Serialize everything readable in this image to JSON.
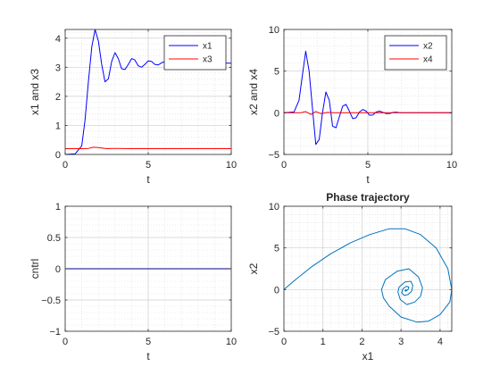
{
  "chart_data": [
    {
      "type": "line",
      "title": "",
      "xlabel": "t",
      "ylabel": "x1 and x3",
      "xlim": [
        0,
        10
      ],
      "ylim": [
        0,
        4.3
      ],
      "xticks": [
        0,
        5,
        10
      ],
      "yticks": [
        0,
        1,
        2,
        3,
        4
      ],
      "grid": true,
      "minor_grid": true,
      "legend": "top-right",
      "series": [
        {
          "name": "x1",
          "color": "#0000ff",
          "x": [
            0,
            0.6,
            1.0,
            1.2,
            1.4,
            1.6,
            1.8,
            2.0,
            2.2,
            2.4,
            2.6,
            2.8,
            3.0,
            3.2,
            3.4,
            3.6,
            3.8,
            4.0,
            4.2,
            4.4,
            4.6,
            4.8,
            5.0,
            5.2,
            5.4,
            5.6,
            5.8,
            6.0,
            6.2,
            6.4,
            6.6,
            6.8,
            7.0,
            7.5,
            8.0,
            8.5,
            9.0,
            10.0
          ],
          "y": [
            0,
            0.02,
            0.3,
            1.2,
            2.5,
            3.7,
            4.3,
            3.9,
            3.1,
            2.5,
            2.6,
            3.2,
            3.5,
            3.3,
            2.95,
            2.92,
            3.1,
            3.3,
            3.25,
            3.05,
            3.0,
            3.1,
            3.22,
            3.2,
            3.1,
            3.08,
            3.15,
            3.19,
            3.15,
            3.11,
            3.12,
            3.16,
            3.16,
            3.13,
            3.15,
            3.14,
            3.14,
            3.14
          ]
        },
        {
          "name": "x3",
          "color": "#ff0000",
          "x": [
            0,
            1.0,
            1.4,
            1.7,
            2.0,
            2.5,
            3.0,
            4.0,
            6.0,
            8.0,
            10.0
          ],
          "y": [
            0.2,
            0.2,
            0.21,
            0.25,
            0.24,
            0.2,
            0.21,
            0.2,
            0.2,
            0.2,
            0.2
          ]
        }
      ]
    },
    {
      "type": "line",
      "title": "",
      "xlabel": "t",
      "ylabel": "x2 and x4",
      "xlim": [
        0,
        10
      ],
      "ylim": [
        -5,
        10
      ],
      "xticks": [
        0,
        5,
        10
      ],
      "yticks": [
        -5,
        0,
        5,
        10
      ],
      "grid": true,
      "minor_grid": true,
      "legend": "top-right",
      "series": [
        {
          "name": "x2",
          "color": "#0000ff",
          "x": [
            0,
            0.6,
            0.9,
            1.1,
            1.3,
            1.5,
            1.7,
            1.9,
            2.1,
            2.3,
            2.5,
            2.7,
            2.9,
            3.1,
            3.3,
            3.5,
            3.7,
            3.9,
            4.1,
            4.3,
            4.5,
            4.7,
            4.9,
            5.1,
            5.3,
            5.5,
            5.7,
            5.9,
            6.1,
            6.3,
            6.5,
            6.7,
            6.9,
            7.5,
            8.0,
            9.0,
            10.0
          ],
          "y": [
            0,
            0.1,
            1.5,
            4.5,
            7.4,
            5.0,
            0.5,
            -3.8,
            -3.2,
            0.0,
            2.5,
            1.5,
            -1.6,
            -1.8,
            -0.5,
            0.8,
            1.0,
            0.2,
            -0.7,
            -0.6,
            0.1,
            0.4,
            0.2,
            -0.3,
            -0.25,
            0.1,
            0.2,
            0.05,
            -0.1,
            -0.08,
            0.05,
            0.08,
            0.0,
            0.0,
            0.0,
            0.0,
            0.0
          ]
        },
        {
          "name": "x4",
          "color": "#ff0000",
          "x": [
            0,
            1.0,
            1.3,
            1.6,
            1.9,
            2.2,
            2.6,
            3.0,
            4.0,
            10.0
          ],
          "y": [
            0,
            0.0,
            0.15,
            -0.2,
            0.15,
            -0.1,
            0.05,
            0.0,
            0.0,
            0.0
          ]
        }
      ]
    },
    {
      "type": "line",
      "title": "",
      "xlabel": "t",
      "ylabel": "cntrl",
      "xlim": [
        0,
        10
      ],
      "ylim": [
        -1,
        1
      ],
      "xticks": [
        0,
        5,
        10
      ],
      "yticks": [
        -1,
        -0.5,
        0,
        0.5,
        1
      ],
      "grid": true,
      "minor_grid": true,
      "series": [
        {
          "color": "#00008b",
          "x": [
            0,
            10
          ],
          "y": [
            0,
            0
          ]
        }
      ]
    },
    {
      "type": "line",
      "title": "Phase trajectory",
      "xlabel": "x1",
      "ylabel": "x2",
      "xlim": [
        0,
        4.3
      ],
      "ylim": [
        -5,
        10
      ],
      "xticks": [
        0,
        1,
        2,
        3,
        4
      ],
      "yticks": [
        -5,
        0,
        5,
        10
      ],
      "grid": true,
      "minor_grid": true,
      "series": [
        {
          "color": "#0072bd",
          "x": [
            0,
            0.3,
            0.7,
            1.2,
            1.7,
            2.2,
            2.7,
            3.1,
            3.5,
            3.9,
            4.2,
            4.3,
            4.25,
            4.0,
            3.7,
            3.4,
            3.0,
            2.7,
            2.55,
            2.5,
            2.6,
            2.9,
            3.2,
            3.45,
            3.55,
            3.5,
            3.35,
            3.15,
            2.98,
            2.92,
            2.95,
            3.1,
            3.25,
            3.3,
            3.27,
            3.18,
            3.08,
            3.02,
            3.05,
            3.14,
            3.2,
            3.18,
            3.12,
            3.1,
            3.14
          ],
          "y": [
            0,
            1.2,
            2.7,
            4.3,
            5.6,
            6.6,
            7.3,
            7.3,
            6.6,
            5.0,
            2.5,
            0.0,
            -1.5,
            -3.0,
            -3.8,
            -3.9,
            -3.3,
            -2.0,
            -1.0,
            0.0,
            1.2,
            2.2,
            2.5,
            1.5,
            0.2,
            -0.8,
            -1.5,
            -1.8,
            -1.2,
            -0.3,
            0.3,
            0.9,
            1.0,
            0.5,
            -0.2,
            -0.6,
            -0.7,
            -0.4,
            0.1,
            0.4,
            0.3,
            0.0,
            -0.2,
            -0.1,
            0.0
          ]
        }
      ]
    }
  ]
}
